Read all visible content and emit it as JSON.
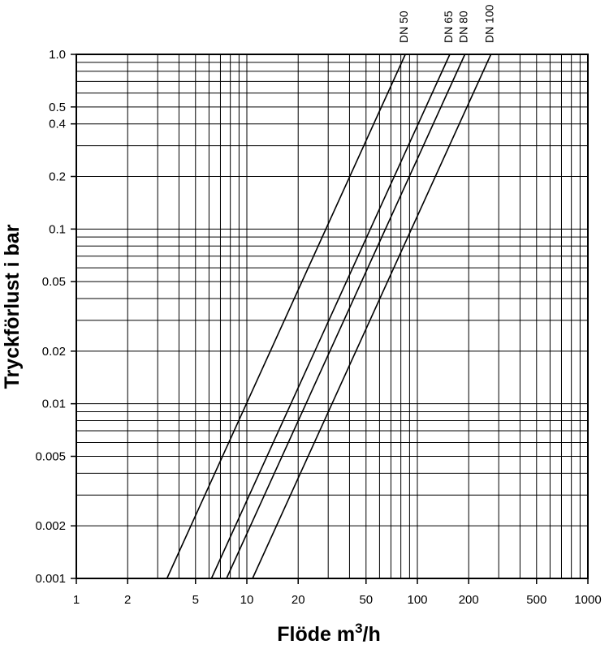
{
  "chart_data": {
    "type": "line",
    "xlabel": "Flöde m",
    "xlabel_sup": "3",
    "xlabel_unit": "/h",
    "ylabel": "Tryckförlust i bar",
    "xscale": "log",
    "yscale": "log",
    "xlim": [
      1,
      1000
    ],
    "ylim": [
      0.001,
      1.0
    ],
    "grid": true,
    "x_ticks": [
      {
        "value": 1,
        "label": "1"
      },
      {
        "value": 2,
        "label": "2"
      },
      {
        "value": 5,
        "label": "5"
      },
      {
        "value": 10,
        "label": "10"
      },
      {
        "value": 20,
        "label": "20"
      },
      {
        "value": 50,
        "label": "50"
      },
      {
        "value": 100,
        "label": "100"
      },
      {
        "value": 200,
        "label": "200"
      },
      {
        "value": 500,
        "label": "500"
      },
      {
        "value": 1000,
        "label": "1000"
      }
    ],
    "y_ticks": [
      {
        "value": 1.0,
        "label": "1.0"
      },
      {
        "value": 0.5,
        "label": "0.5"
      },
      {
        "value": 0.4,
        "label": "0.4"
      },
      {
        "value": 0.2,
        "label": "0.2"
      },
      {
        "value": 0.1,
        "label": "0.1"
      },
      {
        "value": 0.05,
        "label": "0.05"
      },
      {
        "value": 0.02,
        "label": "0.02"
      },
      {
        "value": 0.01,
        "label": "0.01"
      },
      {
        "value": 0.005,
        "label": "0.005"
      },
      {
        "value": 0.002,
        "label": "0.002"
      },
      {
        "value": 0.001,
        "label": "0.001"
      }
    ],
    "series": [
      {
        "name": "DN 50",
        "points": [
          [
            3.4,
            0.001
          ],
          [
            85,
            1.0
          ]
        ]
      },
      {
        "name": "DN 65",
        "points": [
          [
            6.2,
            0.001
          ],
          [
            155,
            1.0
          ]
        ]
      },
      {
        "name": "DN 80",
        "points": [
          [
            7.6,
            0.001
          ],
          [
            190,
            1.0
          ]
        ]
      },
      {
        "name": "DN 100",
        "points": [
          [
            10.8,
            0.001
          ],
          [
            270,
            1.0
          ]
        ]
      }
    ]
  }
}
